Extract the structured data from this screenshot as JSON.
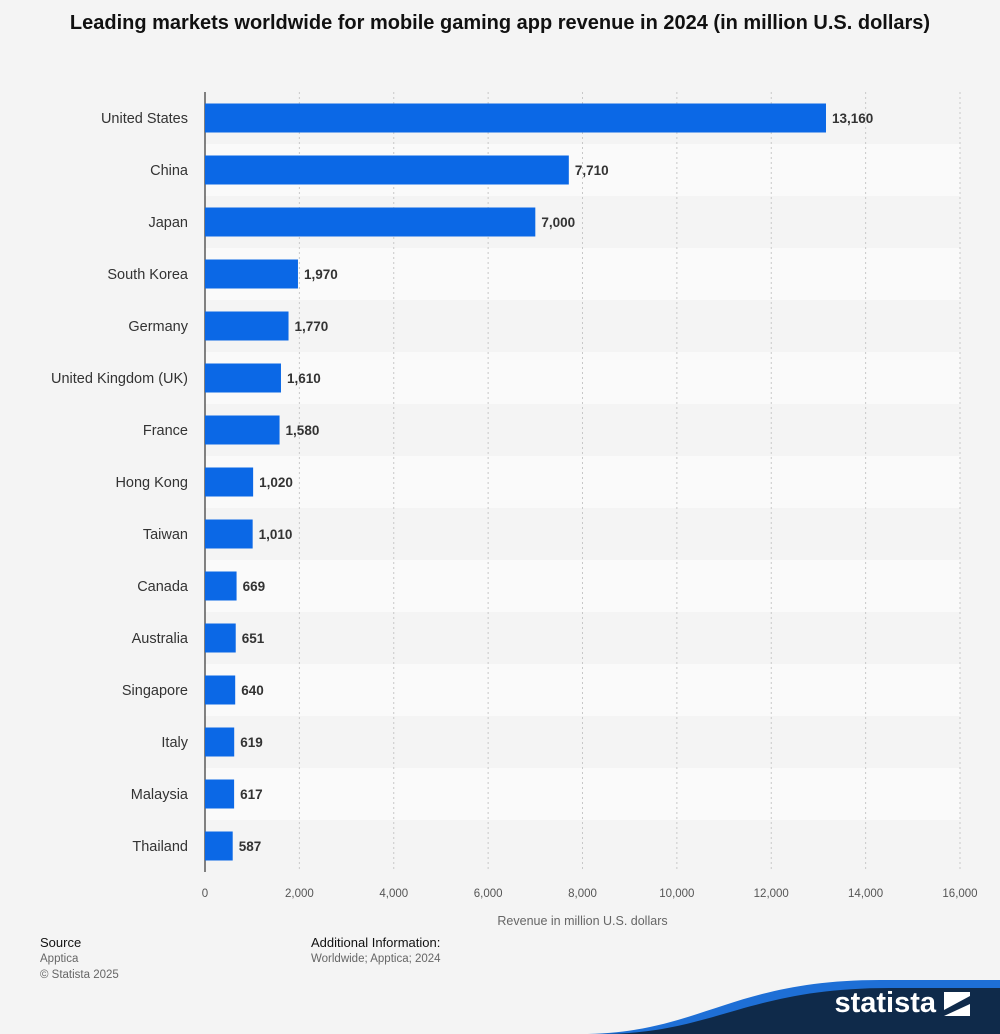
{
  "chart_data": {
    "type": "bar",
    "orientation": "horizontal",
    "title": "Leading markets worldwide for mobile gaming app revenue in 2024 (in million U.S. dollars)",
    "xlabel": "Revenue in million U.S. dollars",
    "ylabel": "",
    "xlim": [
      0,
      16000
    ],
    "x_ticks": [
      "0",
      "2,000",
      "4,000",
      "6,000",
      "8,000",
      "10,000",
      "12,000",
      "14,000",
      "16,000"
    ],
    "grid": true,
    "bar_color": "#0b68e6",
    "categories": [
      "United States",
      "China",
      "Japan",
      "South Korea",
      "Germany",
      "United Kingdom (UK)",
      "France",
      "Hong Kong",
      "Taiwan",
      "Canada",
      "Australia",
      "Singapore",
      "Italy",
      "Malaysia",
      "Thailand"
    ],
    "values": [
      13160,
      7710,
      7000,
      1970,
      1770,
      1610,
      1580,
      1020,
      1010,
      669,
      651,
      640,
      619,
      617,
      587
    ],
    "value_labels": [
      "13,160",
      "7,710",
      "7,000",
      "1,970",
      "1,770",
      "1,610",
      "1,580",
      "1,020",
      "1,010",
      "669",
      "651",
      "640",
      "619",
      "617",
      "587"
    ]
  },
  "footer": {
    "source_heading": "Source",
    "source_text": "Apptica",
    "copyright": "© Statista 2025",
    "additional_heading": "Additional Information:",
    "additional_text": "Worldwide; Apptica; 2024"
  },
  "brand": {
    "name": "statista"
  }
}
